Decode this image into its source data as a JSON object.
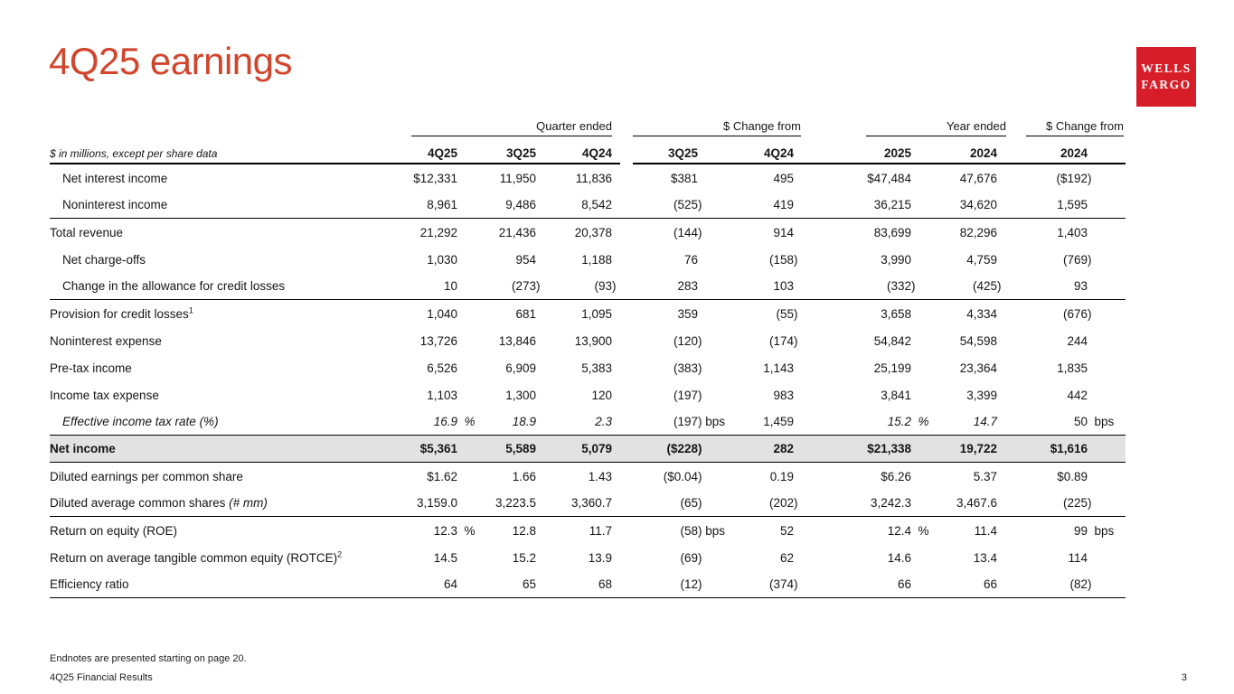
{
  "slide": {
    "title": "4Q25 earnings",
    "endnote": "Endnotes are presented starting on page 20.",
    "footer": "4Q25 Financial Results",
    "page_number": "3"
  },
  "logo": {
    "line1": "WELLS",
    "line2": "FARGO"
  },
  "colors": {
    "accent": "#D0452C",
    "logo_red": "#D71E28",
    "highlight_row": "#E2E2E2",
    "rule": "#000000"
  },
  "table": {
    "caption": "$ in millions, except per share data",
    "groups": [
      {
        "label": "Quarter ended"
      },
      {
        "label": "$ Change from"
      },
      {
        "label": "Year ended"
      },
      {
        "label": "$ Change from"
      }
    ],
    "columns": [
      "4Q25",
      "3Q25",
      "4Q24",
      "3Q25",
      "4Q24",
      "2025",
      "2024",
      "2024"
    ],
    "rows": [
      {
        "label": "Net interest income",
        "indent": true,
        "cells": [
          "$12,331",
          "11,950",
          "11,836",
          "$381",
          "495",
          "$47,484",
          "47,676",
          "($192)"
        ]
      },
      {
        "label": "Noninterest income",
        "indent": true,
        "line": true,
        "cells": [
          "8,961",
          "9,486",
          "8,542",
          "(525)",
          "419",
          "36,215",
          "34,620",
          "1,595"
        ]
      },
      {
        "label": "Total revenue",
        "cells": [
          "21,292",
          "21,436",
          "20,378",
          "(144)",
          "914",
          "83,699",
          "82,296",
          "1,403"
        ]
      },
      {
        "label": "Net charge-offs",
        "indent": true,
        "cells": [
          "1,030",
          "954",
          "1,188",
          "76",
          "(158)",
          "3,990",
          "4,759",
          "(769)"
        ]
      },
      {
        "label": "Change in the allowance for credit losses",
        "indent": true,
        "line": true,
        "cells": [
          "10",
          "(273)",
          "(93)",
          "283",
          "103",
          "(332)",
          "(425)",
          "93"
        ]
      },
      {
        "label": "Provision for credit losses",
        "sup": "1",
        "cells": [
          "1,040",
          "681",
          "1,095",
          "359",
          "(55)",
          "3,658",
          "4,334",
          "(676)"
        ]
      },
      {
        "label": "Noninterest expense",
        "cells": [
          "13,726",
          "13,846",
          "13,900",
          "(120)",
          "(174)",
          "54,842",
          "54,598",
          "244"
        ]
      },
      {
        "label": "Pre-tax income",
        "cells": [
          "6,526",
          "6,909",
          "5,383",
          "(383)",
          "1,143",
          "25,199",
          "23,364",
          "1,835"
        ]
      },
      {
        "label": "Income tax expense",
        "cells": [
          "1,103",
          "1,300",
          "120",
          "(197)",
          "983",
          "3,841",
          "3,399",
          "442"
        ]
      },
      {
        "label": "Effective income tax rate (%)",
        "indent": true,
        "italic": true,
        "line": true,
        "italic_cells": [
          0,
          1,
          2,
          5,
          6
        ],
        "cells": [
          "16.9 %",
          "18.9",
          "2.3",
          "(197) bps",
          "1,459",
          "15.2 %",
          "14.7",
          "50 bps"
        ]
      },
      {
        "label": "Net income",
        "bold": true,
        "highlight": true,
        "line": true,
        "cells": [
          "$5,361",
          "5,589",
          "5,079",
          "($228)",
          "282",
          "$21,338",
          "19,722",
          "$1,616"
        ]
      },
      {
        "label": "Diluted earnings per common share",
        "cells": [
          "$1.62",
          "1.66",
          "1.43",
          "($0.04)",
          "0.19",
          "$6.26",
          "5.37",
          "$0.89"
        ]
      },
      {
        "label": "Diluted average common shares ",
        "italic_suffix": "(# mm)",
        "line": true,
        "cells": [
          "3,159.0",
          "3,223.5",
          "3,360.7",
          "(65)",
          "(202)",
          "3,242.3",
          "3,467.6",
          "(225)"
        ]
      },
      {
        "label": "Return on equity (ROE)",
        "cells": [
          "12.3 %",
          "12.8",
          "11.7",
          "(58) bps",
          "52",
          "12.4 %",
          "11.4",
          "99 bps"
        ]
      },
      {
        "label": "Return on average tangible common equity (ROTCE)",
        "sup": "2",
        "cells": [
          "14.5",
          "15.2",
          "13.9",
          "(69)",
          "62",
          "14.6",
          "13.4",
          "114"
        ]
      },
      {
        "label": "Efficiency ratio",
        "line": true,
        "cells": [
          "64",
          "65",
          "68",
          "(12)",
          "(374)",
          "66",
          "66",
          "(82)"
        ]
      }
    ]
  }
}
